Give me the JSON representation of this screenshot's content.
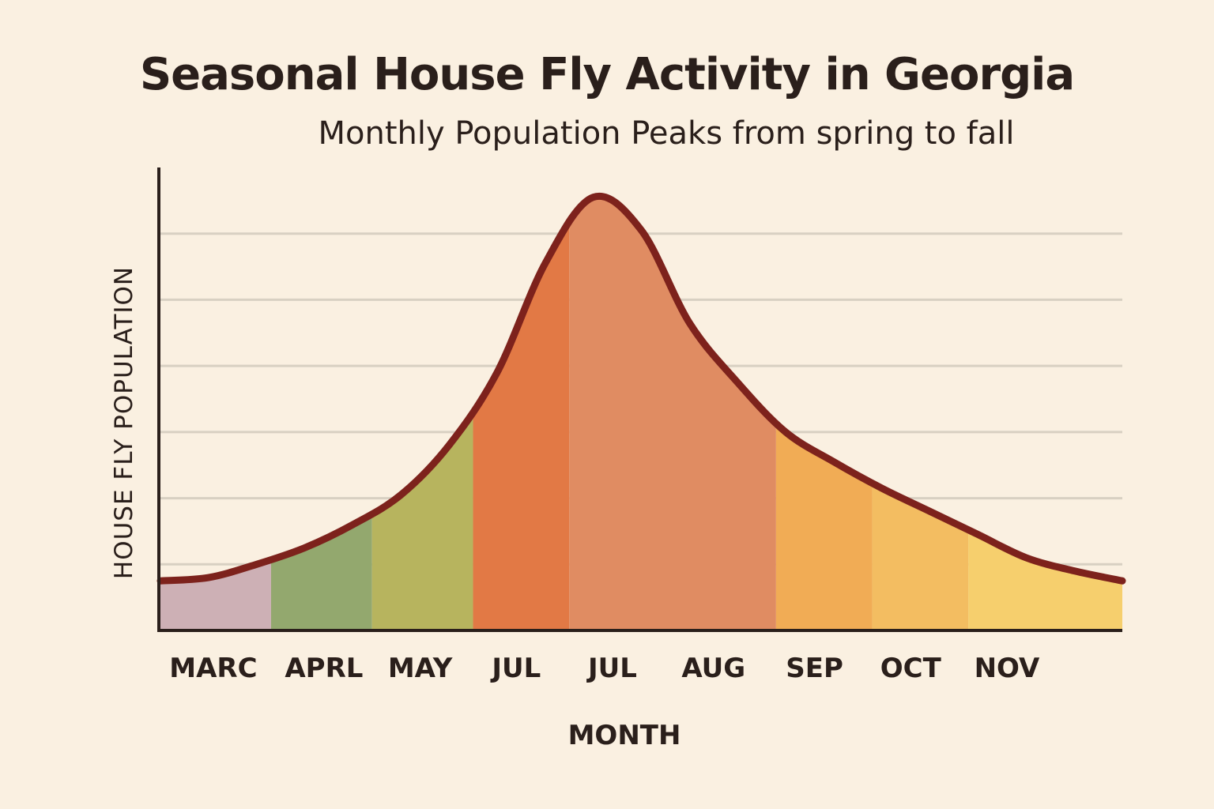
{
  "chart_data": {
    "type": "area",
    "title": "Seasonal House Fly Activity in Georgia",
    "subtitle": "Monthly Population Peaks from spring to fall",
    "xlabel": "MONTH",
    "ylabel": "HOUSE FLY POPULATION",
    "categories": [
      "MARC",
      "APRL",
      "MAY",
      "JUL",
      "JUL",
      "AUG",
      "SEP",
      "OCT",
      "NOV"
    ],
    "x": [
      0,
      0.5,
      1,
      1.5,
      2,
      2.5,
      3,
      3.5,
      4,
      4.5,
      5,
      5.5,
      6,
      6.5,
      7,
      7.5,
      8,
      8.5,
      9,
      9.5,
      10
    ],
    "values": [
      0.75,
      0.8,
      1.0,
      1.25,
      1.6,
      2.05,
      2.8,
      3.9,
      5.55,
      6.55,
      6.05,
      4.65,
      3.75,
      3.0,
      2.55,
      2.15,
      1.8,
      1.45,
      1.1,
      0.9,
      0.75
    ],
    "ylim": [
      0,
      7
    ],
    "grid": true,
    "band_colors": [
      "#cdb0b5",
      "#93a86e",
      "#b7b45e",
      "#e27945",
      "#e08c62",
      "#f1ac55",
      "#f3bd61",
      "#f6cf6d"
    ],
    "line_color": "#7d221c"
  }
}
